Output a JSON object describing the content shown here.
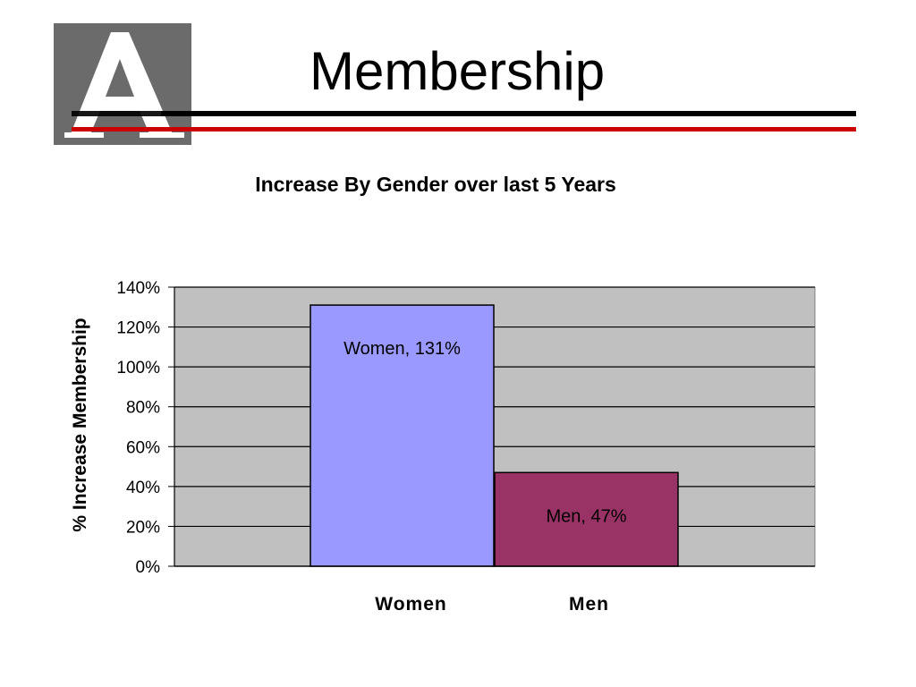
{
  "slide": {
    "title": "Membership",
    "logo_letter": "A"
  },
  "colors": {
    "plot_bg": "#c0c0c0",
    "women_bar": "#9999ff",
    "men_bar": "#993366",
    "rule_black": "#000000",
    "rule_red": "#cc0000"
  },
  "chart_data": {
    "type": "bar",
    "title": "Increase By Gender over last 5 Years",
    "xlabel": "",
    "ylabel": "% Increase Membership",
    "categories": [
      "Women",
      "Men"
    ],
    "values": [
      131,
      47
    ],
    "data_labels": [
      "Women, 131%",
      "Men, 47%"
    ],
    "bar_colors": [
      "#9999ff",
      "#993366"
    ],
    "ylim": [
      0,
      140
    ],
    "yticks": [
      0,
      20,
      40,
      60,
      80,
      100,
      120,
      140
    ],
    "ytick_labels": [
      "0%",
      "20%",
      "40%",
      "60%",
      "80%",
      "100%",
      "120%",
      "140%"
    ],
    "grid": true,
    "legend": "none"
  }
}
